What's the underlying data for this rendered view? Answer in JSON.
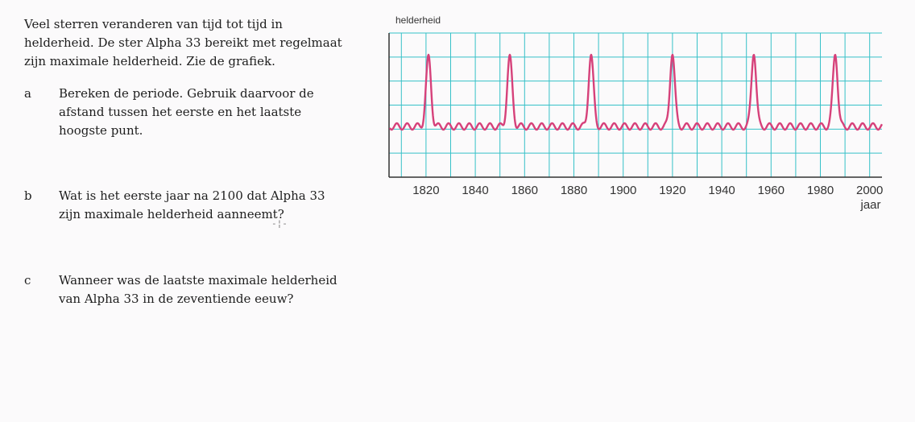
{
  "intro": "Veel sterren veranderen van tijd tot tijd in helderheid. De ster Alpha 33 bereikt met regelmaat zijn maximale helderheid. Zie de grafiek.",
  "questions": [
    {
      "letter": "a",
      "text": "Bereken de periode. Gebruik daarvoor de afstand tussen het eerste en het laatste hoogste punt."
    },
    {
      "letter": "b",
      "text": "Wat is het eerste jaar na 2100 dat Alpha 33 zijn maximale helderheid aanneemt?"
    },
    {
      "letter": "c",
      "text": "Wanneer was de laatste maximale helderheid van Alpha 33 in de zeventiende eeuw?"
    }
  ],
  "chart_data": {
    "type": "line",
    "ylabel": "helderheid",
    "xlabel": "jaar",
    "xlim": [
      1805,
      2005
    ],
    "xticks": [
      1820,
      1840,
      1860,
      1880,
      1900,
      1920,
      1940,
      1960,
      1980,
      2000
    ],
    "peaks": [
      1821,
      1854,
      1887,
      1920,
      1953,
      1986
    ],
    "grid": true,
    "colors": {
      "line": "#d6417a",
      "grid": "#36c1c8",
      "axis": "#333333"
    }
  }
}
